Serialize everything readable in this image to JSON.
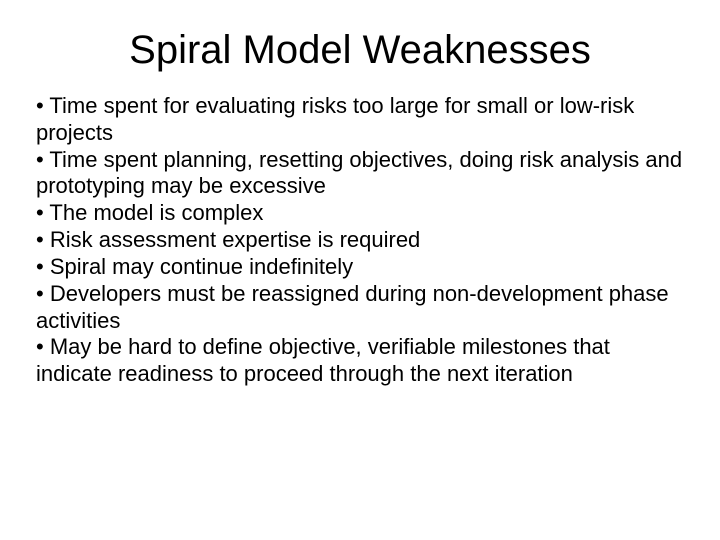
{
  "slide": {
    "title": "Spiral Model Weaknesses",
    "bullets": [
      "Time spent for evaluating risks too large for small or low-risk projects",
      "Time spent planning, resetting objectives, doing risk analysis and prototyping may  be excessive",
      "The model is complex",
      "Risk assessment expertise is required",
      "Spiral may continue indefinitely",
      "Developers must be reassigned during non-development phase activities",
      "May be hard to define objective, verifiable milestones that indicate readiness to proceed through the next iteration"
    ],
    "title_fontsize": 40,
    "body_fontsize": 22,
    "text_color": "#000000",
    "background_color": "#ffffff",
    "bullet_char": "•"
  }
}
